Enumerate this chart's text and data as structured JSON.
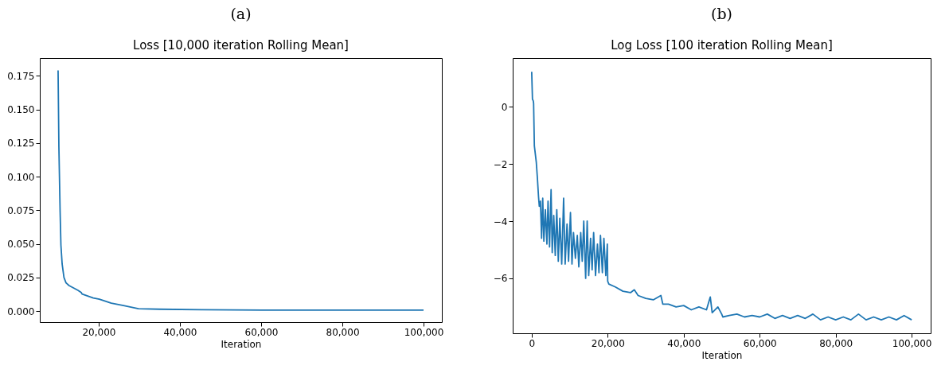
{
  "chart_data": [
    {
      "type": "line",
      "title": "(a)",
      "subtitle": "Loss [10,000 iteration Rolling Mean]",
      "xlabel": "Iteration",
      "grid": false,
      "xlim": [
        5500,
        104500
      ],
      "ylim": [
        -0.0082,
        0.1882
      ],
      "xticks": [
        {
          "value": 20000,
          "label": "20,000"
        },
        {
          "value": 40000,
          "label": "40,000"
        },
        {
          "value": 60000,
          "label": "60,000"
        },
        {
          "value": 80000,
          "label": "80,000"
        },
        {
          "value": 100000,
          "label": "100,000"
        }
      ],
      "yticks": [
        {
          "value": 0,
          "label": "0.000"
        },
        {
          "value": 0.025,
          "label": "0.025"
        },
        {
          "value": 0.05,
          "label": "0.050"
        },
        {
          "value": 0.075,
          "label": "0.075"
        },
        {
          "value": 0.1,
          "label": "0.100"
        },
        {
          "value": 0.125,
          "label": "0.125"
        },
        {
          "value": 0.15,
          "label": "0.150"
        },
        {
          "value": 0.175,
          "label": "0.175"
        }
      ],
      "series": [
        {
          "color": "#1f77b4",
          "x": [
            10000,
            10200,
            10500,
            10700,
            11000,
            11450,
            11960,
            12700,
            14900,
            15700,
            15900,
            18660,
            20150,
            23100,
            26100,
            29800,
            35000,
            45400,
            60300,
            100000
          ],
          "values": [
            0.179,
            0.122,
            0.074,
            0.049,
            0.035,
            0.025,
            0.021,
            0.019,
            0.0155,
            0.0139,
            0.0127,
            0.0098,
            0.0089,
            0.0059,
            0.0041,
            0.0018,
            0.0014,
            0.0011,
            0.0007,
            0.0007
          ]
        }
      ]
    },
    {
      "type": "line",
      "title": "(b)",
      "subtitle": "Log Loss [100 iteration Rolling Mean]",
      "xlabel": "Iteration",
      "grid": false,
      "xlim": [
        -5000,
        105000
      ],
      "ylim": [
        -7.92,
        1.7
      ],
      "xticks": [
        0,
        {
          "value": 20000,
          "label": "20,000"
        },
        {
          "value": 40000,
          "label": "40,000"
        },
        {
          "value": 60000,
          "label": "60,000"
        },
        {
          "value": 80000,
          "label": "80,000"
        },
        {
          "value": 100000,
          "label": "100,000"
        }
      ],
      "yticks": [
        {
          "value": -6,
          "label": "−6"
        },
        {
          "value": -4,
          "label": "−4"
        },
        {
          "value": -2,
          "label": "−2"
        },
        0
      ],
      "series": [
        {
          "color": "#1f77b4",
          "x": [
            0,
            200,
            400,
            500,
            700,
            1200,
            1500,
            1800,
            2000,
            2300,
            2600,
            2900,
            3200,
            3600,
            4000,
            4300,
            4700,
            5100,
            5400,
            5800,
            6200,
            6600,
            7000,
            7400,
            7900,
            8400,
            8800,
            9300,
            9700,
            10200,
            10600,
            11000,
            11500,
            12000,
            12400,
            12900,
            13300,
            13700,
            14200,
            14600,
            15000,
            15500,
            15900,
            16300,
            16800,
            17300,
            17700,
            18100,
            18600,
            19000,
            19500,
            19900,
            20000,
            20300,
            22000,
            24000,
            26000,
            27000,
            28000,
            30000,
            32000,
            34000,
            34500,
            36000,
            38000,
            40000,
            42000,
            44000,
            46000,
            47000,
            47500,
            49000,
            50000,
            50300,
            52000,
            54000,
            56000,
            58000,
            60000,
            62000,
            64000,
            66000,
            68000,
            70000,
            72000,
            74000,
            76000,
            78000,
            80000,
            82000,
            84000,
            86000,
            88000,
            90000,
            92000,
            94000,
            96000,
            98000,
            100000
          ],
          "values": [
            1.22,
            0.26,
            0.21,
            0.12,
            -1.37,
            -1.93,
            -2.5,
            -3.15,
            -3.48,
            -3.3,
            -4.6,
            -3.2,
            -4.7,
            -3.6,
            -4.8,
            -3.3,
            -4.9,
            -2.9,
            -5.1,
            -3.8,
            -5.2,
            -3.6,
            -5.4,
            -3.9,
            -5.5,
            -3.2,
            -5.5,
            -4.1,
            -5.4,
            -3.7,
            -5.5,
            -4.4,
            -5.3,
            -4.5,
            -5.6,
            -4.4,
            -5.4,
            -4.0,
            -6.0,
            -4.0,
            -5.9,
            -4.6,
            -5.7,
            -4.4,
            -5.9,
            -4.8,
            -5.8,
            -4.5,
            -5.8,
            -4.6,
            -5.9,
            -4.8,
            -6.1,
            -6.2,
            -6.3,
            -6.45,
            -6.5,
            -6.4,
            -6.6,
            -6.7,
            -6.75,
            -6.6,
            -6.9,
            -6.9,
            -7.0,
            -6.95,
            -7.1,
            -7.0,
            -7.1,
            -6.65,
            -7.2,
            -7.0,
            -7.25,
            -7.35,
            -7.3,
            -7.25,
            -7.35,
            -7.3,
            -7.35,
            -7.25,
            -7.4,
            -7.3,
            -7.4,
            -7.3,
            -7.4,
            -7.25,
            -7.45,
            -7.35,
            -7.45,
            -7.35,
            -7.45,
            -7.25,
            -7.45,
            -7.35,
            -7.45,
            -7.35,
            -7.45,
            -7.3,
            -7.45
          ]
        }
      ]
    }
  ]
}
